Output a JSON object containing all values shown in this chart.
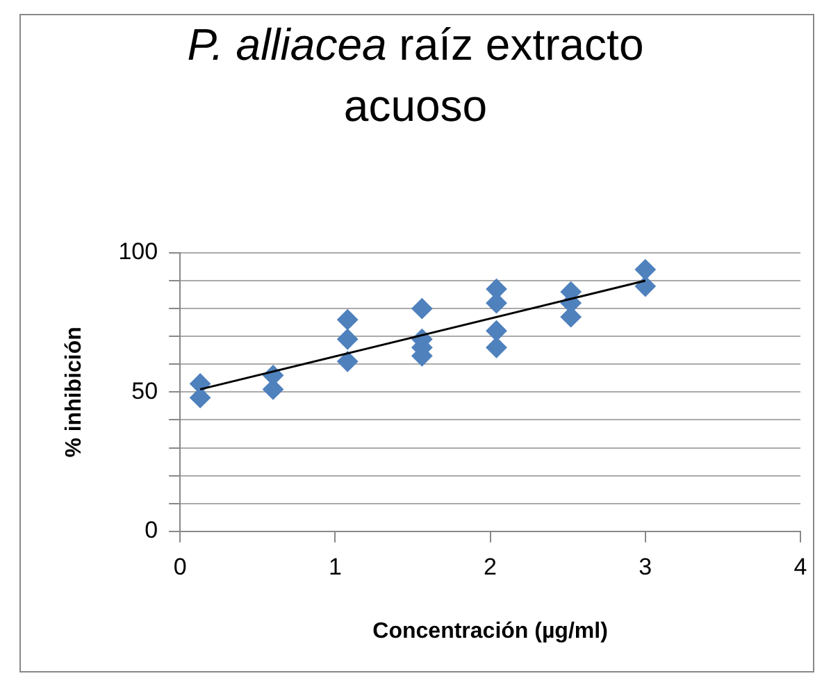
{
  "chart_data": {
    "type": "scatter",
    "title": "P. alliacea raíz extracto acuoso",
    "xlabel": "Concentración (µg/ml)",
    "ylabel": "% inhibición",
    "xlim": [
      0,
      4
    ],
    "xticks": [
      0,
      1,
      2,
      3,
      4
    ],
    "ylim": [
      0,
      100
    ],
    "yticks": [
      0,
      {
        "value": 10,
        "label": null
      },
      {
        "value": 20,
        "label": null
      },
      {
        "value": 30,
        "label": null
      },
      {
        "value": 40,
        "label": null
      },
      50,
      {
        "value": 60,
        "label": null
      },
      {
        "value": 70,
        "label": null
      },
      {
        "value": 80,
        "label": null
      },
      {
        "value": 90,
        "label": null
      },
      100
    ],
    "grid": "y",
    "legend": false,
    "marker": "diamond",
    "series": [
      {
        "color": "#4f81bd",
        "x": [
          0.13,
          0.13,
          0.6,
          0.6,
          1.08,
          1.08,
          1.08,
          1.56,
          1.56,
          1.56,
          1.56,
          2.04,
          2.04,
          2.04,
          2.04,
          2.52,
          2.52,
          2.52,
          3,
          3
        ],
        "values": [
          53,
          48,
          56,
          51,
          76,
          69,
          61,
          80,
          69,
          66,
          63,
          87,
          82,
          72,
          66,
          86,
          82,
          77,
          94,
          88
        ]
      },
      {
        "type": "line",
        "color": "#000000",
        "marker": "none",
        "x": [
          0.13,
          3
        ],
        "values": [
          51,
          90
        ]
      }
    ]
  }
}
